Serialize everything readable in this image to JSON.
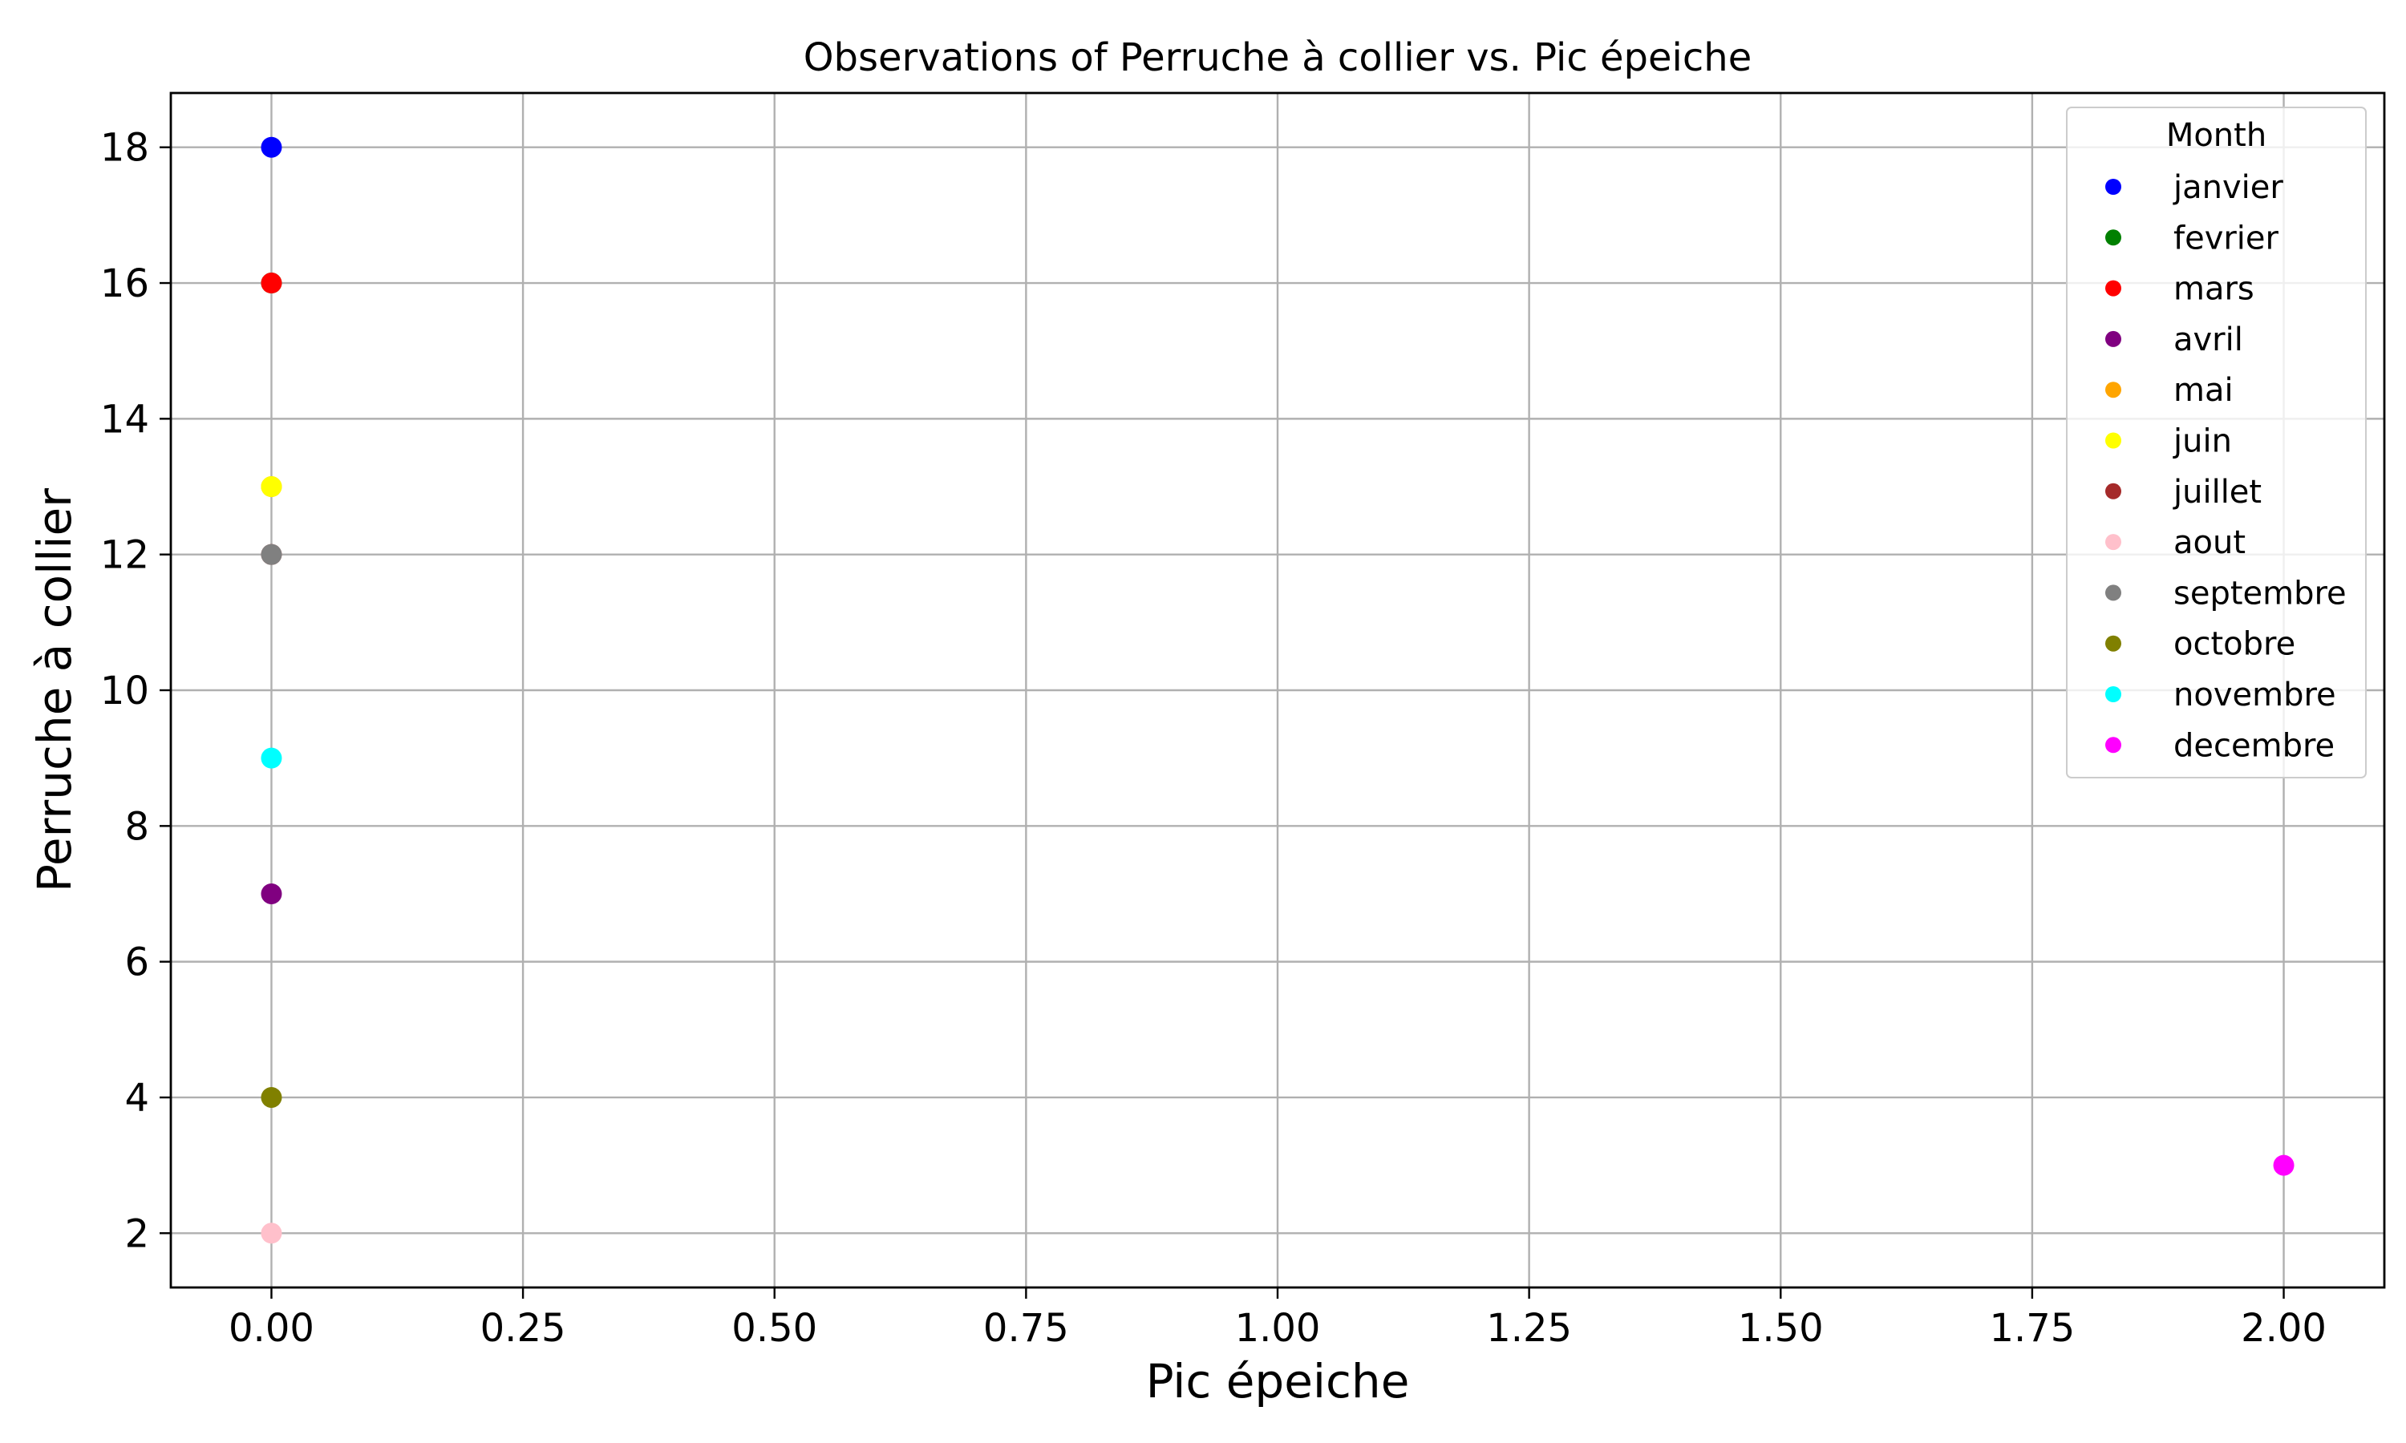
{
  "chart_data": {
    "type": "scatter",
    "title": "Observations of Perruche à collier vs. Pic épeiche",
    "xlabel": "Pic épeiche",
    "ylabel": "Perruche à collier",
    "xlim": [
      -0.1,
      2.1
    ],
    "ylim": [
      1.2,
      18.8
    ],
    "x_ticks": [
      "0.00",
      "0.25",
      "0.50",
      "0.75",
      "1.00",
      "1.25",
      "1.50",
      "1.75",
      "2.00"
    ],
    "x_tick_values": [
      0,
      0.25,
      0.5,
      0.75,
      1.0,
      1.25,
      1.5,
      1.75,
      2.0
    ],
    "y_ticks": [
      "2",
      "4",
      "6",
      "8",
      "10",
      "12",
      "14",
      "16",
      "18"
    ],
    "y_tick_values": [
      2,
      4,
      6,
      8,
      10,
      12,
      14,
      16,
      18
    ],
    "grid": true,
    "legend": {
      "title": "Month",
      "placement": "top-right"
    },
    "series": [
      {
        "name": "janvier",
        "color": "#0000ff",
        "x": [
          0
        ],
        "y": [
          18
        ]
      },
      {
        "name": "fevrier",
        "color": "#008000",
        "x": [
          0
        ],
        "y": [
          16
        ]
      },
      {
        "name": "mars",
        "color": "#ff0000",
        "x": [
          0
        ],
        "y": [
          16
        ]
      },
      {
        "name": "avril",
        "color": "#800080",
        "x": [
          0
        ],
        "y": [
          7
        ]
      },
      {
        "name": "mai",
        "color": "#ffa500",
        "x": [
          0
        ],
        "y": [
          13
        ]
      },
      {
        "name": "juin",
        "color": "#ffff00",
        "x": [
          0
        ],
        "y": [
          13
        ]
      },
      {
        "name": "juillet",
        "color": "#a52a2a",
        "x": [
          0
        ],
        "y": [
          12
        ]
      },
      {
        "name": "aout",
        "color": "#ffc0cb",
        "x": [
          0
        ],
        "y": [
          2
        ]
      },
      {
        "name": "septembre",
        "color": "#808080",
        "x": [
          0
        ],
        "y": [
          12
        ]
      },
      {
        "name": "octobre",
        "color": "#808000",
        "x": [
          0
        ],
        "y": [
          4
        ]
      },
      {
        "name": "novembre",
        "color": "#00ffff",
        "x": [
          0
        ],
        "y": [
          9
        ]
      },
      {
        "name": "decembre",
        "color": "#ff00ff",
        "x": [
          2
        ],
        "y": [
          3
        ]
      }
    ]
  }
}
